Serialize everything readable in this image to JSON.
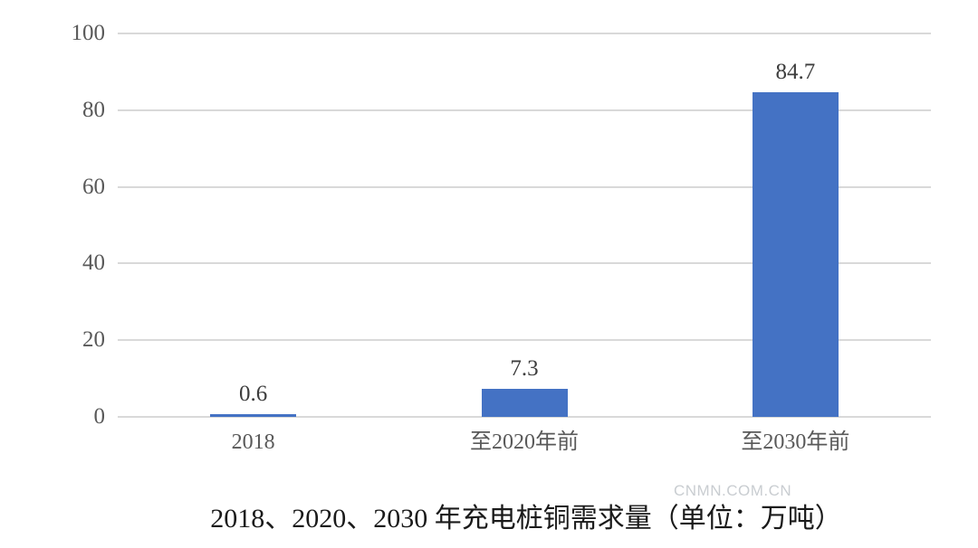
{
  "chart_data": {
    "type": "bar",
    "categories": [
      "2018",
      "至2020年前",
      "至2030年前"
    ],
    "values": [
      0.6,
      7.3,
      84.7
    ],
    "data_labels": [
      "0.6",
      "7.3",
      "84.7"
    ],
    "title": "2018、2020、2030 年充电桩铜需求量（单位：万吨）",
    "xlabel": "",
    "ylabel": "",
    "ylim": [
      0,
      100
    ],
    "yticks": [
      0,
      20,
      40,
      60,
      80,
      100
    ],
    "grid": true,
    "legend": false,
    "bar_color": "#4472C4",
    "gridline_color": "#d9d9d9",
    "tick_label_color": "#595959",
    "data_label_color": "#3d3d3d",
    "title_color": "#1a1a1a"
  },
  "watermark": "CNMN.COM.CN"
}
